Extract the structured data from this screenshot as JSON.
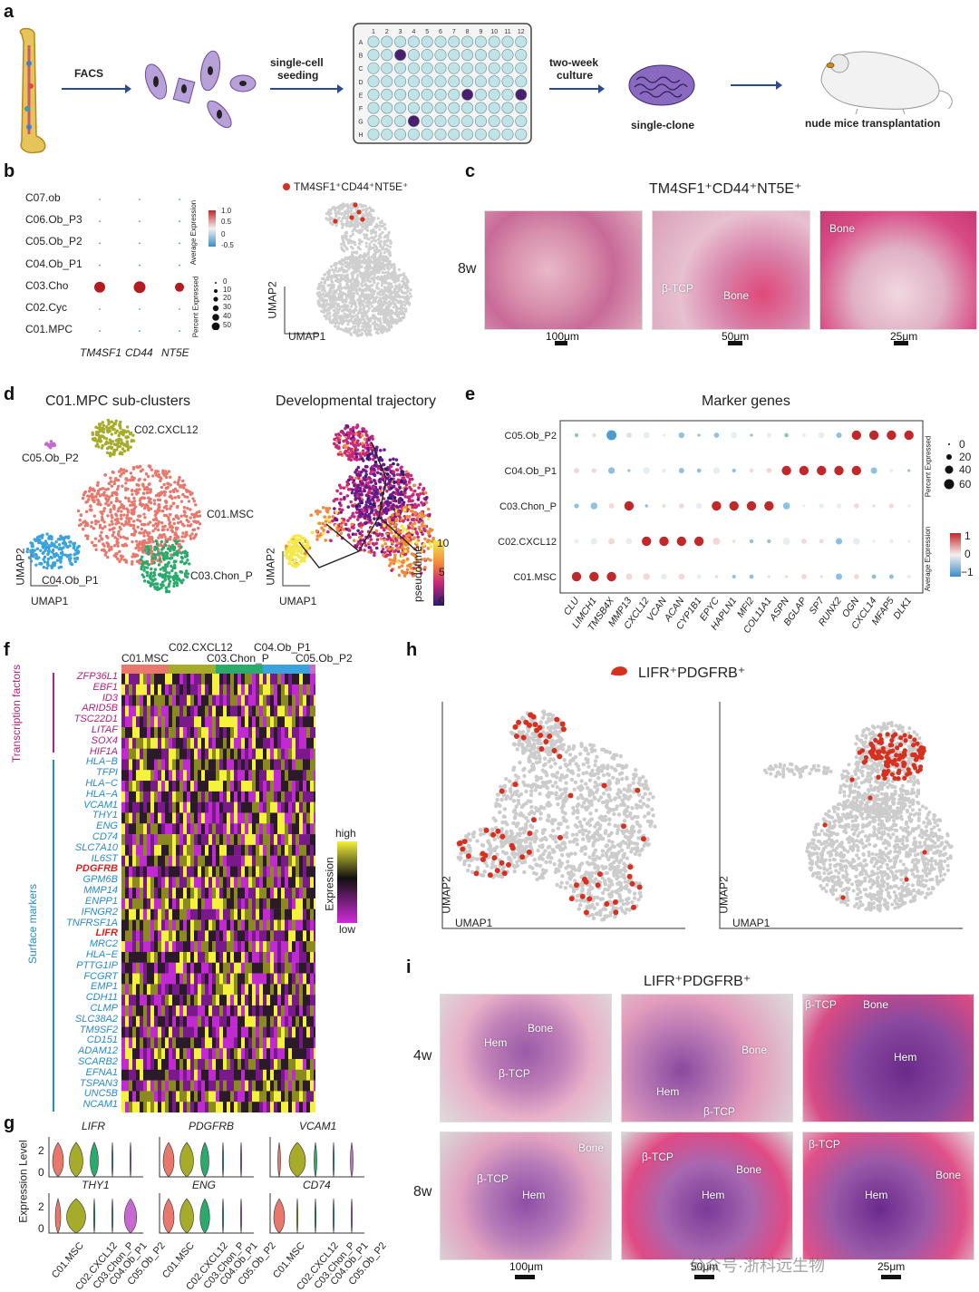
{
  "panels": {
    "a": "a",
    "b": "b",
    "c": "c",
    "d": "d",
    "e": "e",
    "f": "f",
    "g": "g",
    "h": "h",
    "i": "i"
  },
  "panel_a": {
    "steps": [
      "FACS",
      "single-cell\nseeding",
      "two-week\nculture"
    ],
    "step1": "FACS",
    "step2a": "single-cell",
    "step2b": "seeding",
    "step3a": "two-week",
    "step3b": "culture",
    "single_clone": "single-clone",
    "transplant": "nude mice transplantation",
    "plate_cols": [
      "1",
      "2",
      "3",
      "4",
      "5",
      "6",
      "7",
      "8",
      "9",
      "10",
      "11",
      "12"
    ],
    "plate_rows": [
      "A",
      "B",
      "C",
      "D",
      "E",
      "F",
      "G",
      "H"
    ]
  },
  "panel_b": {
    "clusters": [
      "C07.ob",
      "C06.Ob_P3",
      "C05.Ob_P2",
      "C04.Ob_P1",
      "C03.Cho",
      "C02.Cyc",
      "C01.MPC"
    ],
    "genes": [
      "TM4SF1",
      "CD44",
      "NT5E"
    ],
    "legend_avg_title": "Average Expression",
    "legend_avg_ticks": [
      "1.0",
      "0.5",
      "0",
      "-0.5"
    ],
    "legend_pct_title": "Percent Expressed",
    "legend_pct_ticks": [
      "0",
      "10",
      "20",
      "30",
      "40",
      "50"
    ],
    "umap_legend": "TM4SF1⁺CD44⁺NT5E⁺",
    "umap1": "UMAP1",
    "umap2": "UMAP2"
  },
  "panel_c": {
    "title": "TM4SF1⁺CD44⁺NT5E⁺",
    "time": "8w",
    "labels": [
      "β-TCP",
      "Bone",
      "Bone"
    ],
    "scalebars": [
      "100μm",
      "50μm",
      "25μm"
    ]
  },
  "panel_d": {
    "title_left": "C01.MPC sub-clusters",
    "title_right": "Developmental trajectory",
    "clusters": [
      "C02.CXCL12",
      "C05.Ob_P2",
      "C01.MSC",
      "C04.Ob_P1",
      "C03.Chon_P"
    ],
    "colorbar_label": "pseudotime",
    "colorbar_ticks": [
      "10",
      "5",
      "0"
    ],
    "umap1": "UMAP1",
    "umap2": "UMAP2"
  },
  "panel_e": {
    "title": "Marker genes",
    "clusters": [
      "C05.Ob_P2",
      "C04.Ob_P1",
      "C03.Chon_P",
      "C02.CXCL12",
      "C01.MSC"
    ],
    "genes": [
      "CLU",
      "LIMCH1",
      "TMSB4X",
      "MMP13",
      "CXCL12",
      "VCAN",
      "ACAN",
      "CYP1B1",
      "EPYC",
      "HAPLN1",
      "MFI2",
      "COL11A1",
      "ASPN",
      "BGLAP",
      "SP7",
      "RUNX2",
      "OGN",
      "CXCL14",
      "MFAP5",
      "DLK1"
    ],
    "legend_pct_title": "Percent Expressed",
    "legend_pct_ticks": [
      "0",
      "20",
      "40",
      "60"
    ],
    "legend_avg_title": "Average Expression",
    "legend_avg_ticks": [
      "1",
      "0",
      "−1"
    ]
  },
  "panel_f": {
    "top_clusters": [
      "C01.MSC",
      "C02.CXCL12",
      "C03.Chon_P",
      "C04.Ob_P1",
      "C05.Ob_P2"
    ],
    "group_tf": "Transcription factors",
    "group_sm": "Surface markers",
    "tf_genes": [
      "ZFP36L1",
      "EBF1",
      "ID3",
      "ARID5B",
      "TSC22D1",
      "LITAF",
      "SOX4",
      "HIF1A"
    ],
    "sm_genes": [
      "HLA−B",
      "TFPI",
      "HLA−C",
      "HLA−A",
      "VCAM1",
      "THY1",
      "ENG",
      "CD74",
      "SLC7A10",
      "IL6ST",
      "PDGFRB",
      "GPM6B",
      "MMP14",
      "ENPP1",
      "IFNGR2",
      "TNFRSF1A",
      "LIFR",
      "MRC2",
      "HLA−E",
      "PTTG1IP",
      "FCGRT",
      "EMP1",
      "CDH11",
      "CLMP",
      "SLC38A2",
      "TM9SF2",
      "CD151",
      "ADAM12",
      "SCARB2",
      "EFNA1",
      "TSPAN3",
      "UNC5B",
      "NCAM1"
    ],
    "legend_high": "high",
    "legend_low": "low",
    "legend_title": "Expression"
  },
  "panel_g": {
    "genes_row1": [
      "LIFR",
      "PDGFRB",
      "VCAM1"
    ],
    "genes_row2": [
      "THY1",
      "ENG",
      "CD74"
    ],
    "ylabel": "Expression Level",
    "yticks": [
      "2",
      "0"
    ],
    "xcats": [
      "C01.MSC",
      "C02.CXCL12",
      "C03.Chon_P",
      "C04.Ob_P1",
      "C05.Ob_P2"
    ]
  },
  "panel_h": {
    "title": "LIFR⁺PDGFRB⁺",
    "umap1": "UMAP1",
    "umap2": "UMAP2"
  },
  "panel_i": {
    "title": "LIFR⁺PDGFRB⁺",
    "time_4w": "4w",
    "time_8w": "8w",
    "r1": [
      [
        "Hem",
        "Bone",
        "β-TCP"
      ],
      [
        "Bone",
        "Hem",
        "β-TCP"
      ],
      [
        "β-TCP",
        "Bone",
        "Hem"
      ]
    ],
    "r2": [
      [
        "Bone",
        "β-TCP",
        "Hem"
      ],
      [
        "β-TCP",
        "Bone",
        "Hem"
      ],
      [
        "β-TCP",
        "Bone",
        "Hem"
      ]
    ],
    "scalebars": [
      "100μm",
      "50μm",
      "25μm"
    ]
  },
  "watermark": "公众号·浙科远生物",
  "colors": {
    "bone": "#e9a0b0",
    "tissue": "#c96aa0",
    "grey_cell": "#cccccc",
    "red_highlight": "#d7301f",
    "tf_color": "#b0237e",
    "sm_color": "#2a8ac8",
    "arrow": "#2b4c8c",
    "plate_fill": "#bfe3e6",
    "plate_dark": "#4b1f6f"
  }
}
